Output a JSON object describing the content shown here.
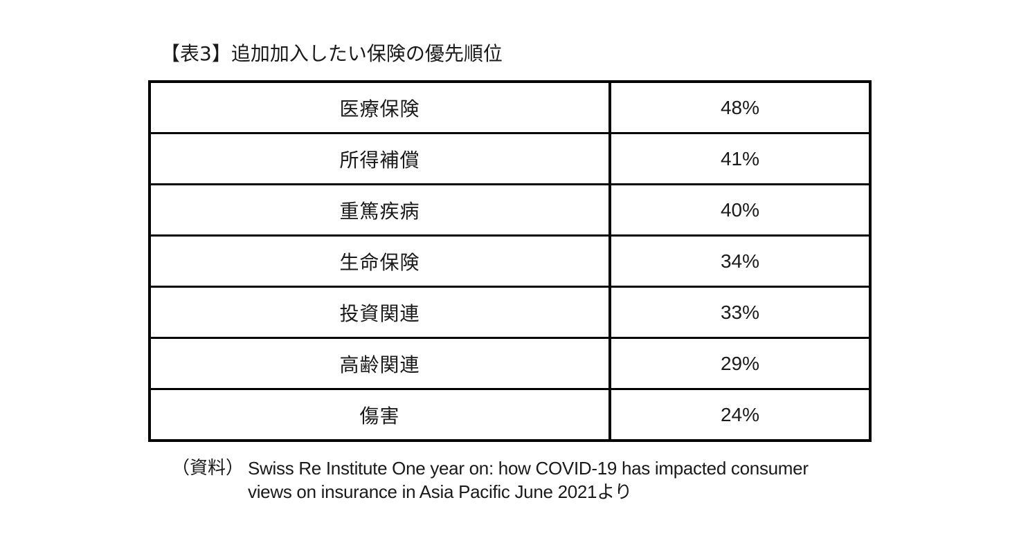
{
  "table": {
    "caption": "【表3】追加加入したい保険の優先順位",
    "rows": [
      {
        "label": "医療保険",
        "value": "48%"
      },
      {
        "label": "所得補償",
        "value": "41%"
      },
      {
        "label": "重篤疾病",
        "value": "40%"
      },
      {
        "label": "生命保険",
        "value": "34%"
      },
      {
        "label": "投資関連",
        "value": "33%"
      },
      {
        "label": "高齢関連",
        "value": "29%"
      },
      {
        "label": "傷害",
        "value": "24%"
      }
    ]
  },
  "source": {
    "prefix": "（資料）",
    "line1": "Swiss Re Institute  One year on: how COVID-19 has impacted consumer",
    "line2": "views on insurance in Asia Pacific  June 2021より"
  }
}
